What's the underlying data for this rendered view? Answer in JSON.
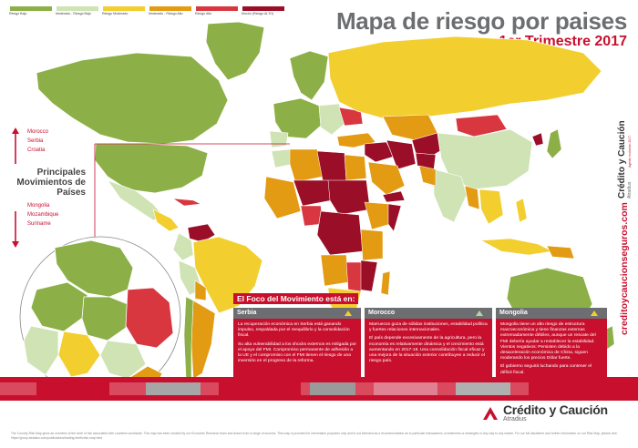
{
  "title": "Mapa de riesgo por paises",
  "subtitle": "1er Trimestre 2017",
  "legend": [
    {
      "label": "Riesgo Bajo",
      "color": "#8cb047"
    },
    {
      "label": "Moderado - Riesgo Bajo",
      "color": "#cfe3b5"
    },
    {
      "label": "Riesgo Moderado",
      "color": "#f2ce2e"
    },
    {
      "label": "Moderado - Riesgo Alto",
      "color": "#e39b13"
    },
    {
      "label": "Riesgo Alto",
      "color": "#d8373f"
    },
    {
      "label": "Mucho (Riesgo ALTO)",
      "color": "#9a0e27"
    }
  ],
  "movements": {
    "up": [
      "Morocco",
      "Serbia",
      "Croatia"
    ],
    "heading_line1": "Principales",
    "heading_line2": "Movimientos de",
    "heading_line3": "Países",
    "down": [
      "Mongolia",
      "Mozambique",
      "Suriname"
    ]
  },
  "focus": {
    "title": "El Foco del Movimiento está en:",
    "cards": [
      {
        "name": "Serbia",
        "p1": "La recuperación económica en Serbia está ganando impulso, respaldada por el reequilibrio y la consolidación fiscal.",
        "p2": "Su alta vulnerabilidad a los shocks externos es mitigada por el apoyo del FMI. Compromiso permanente de adhesión a la UE y el compromiso con el FMI tienen el riesgo de una inversión en el progreso de la reforma."
      },
      {
        "name": "Morocco",
        "p1": "Marruecos goza de sólidas instituciones, estabilidad política y fuertes relaciones internacionales.",
        "p2": "El país depende excesivamente de la agricultura, pero la economía es relativamente dinámica y el crecimiento está aumentando en 2017-18. Una consolidación fiscal eficaz y una mejora de la situación exterior contribuyen a reducir el riesgo país."
      },
      {
        "name": "Mongolia",
        "p1": "Mongolia tiene un alto riesgo de estructura macroeconómica y tiene finanzas externas extremadamente débiles, aunque un rescate del FMI debería ayudar a restablecer la estabilidad. Vientos negativos: Persisten debido a la desaceleración económica de China, siguen moderando los precios Dólar fuerte.",
        "p2": "El gobierno seguirá luchando para contener el déficit fiscal."
      }
    ]
  },
  "brand": {
    "vertical_name": "Crédito y Caución",
    "vertical_sub": "Atradius",
    "vertical_tag": "Agente exclusivo 2017",
    "url": "creditoycaucionseguros.com",
    "logo_main": "Crédito y Caución",
    "logo_sub": "Atradius"
  },
  "disclaimer": "The Country Risk Map gives an overview of the level of risk associated with countries worldwide. This map has been created by our Economic Research team and drawn from a range of sources. This map is provided for information purposes only and is not intended as a recommendation as to particular transactions, investments or strategies in any way to any reader. For our full disclaimer and further information on our Risk Map, please visit https://group.atradius.com/publications/trading-briefs/risk-map.html"
}
